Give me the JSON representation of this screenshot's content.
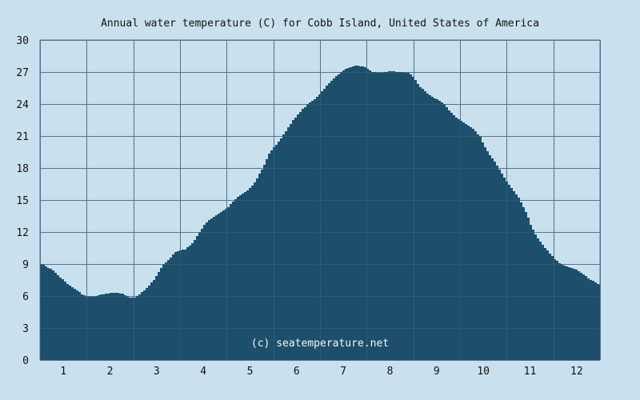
{
  "chart_data": {
    "type": "area",
    "title": "Annual water temperature (C) for Cobb Island, United States of America",
    "xlabel": "",
    "ylabel": "",
    "ylim": [
      0,
      30
    ],
    "xlim": [
      0.5,
      12.5
    ],
    "y_ticks": [
      "0",
      "3",
      "6",
      "9",
      "12",
      "15",
      "18",
      "21",
      "24",
      "27",
      "30"
    ],
    "x_ticks": [
      "1",
      "2",
      "3",
      "4",
      "5",
      "6",
      "7",
      "8",
      "9",
      "10",
      "11",
      "12"
    ],
    "grid": true,
    "fill_color": "#1d4f6b",
    "background_color": "#c9e1ee",
    "grid_color": "#4f7690",
    "watermark": "(c) seatemperature.net",
    "series": [
      {
        "x": [
          0.5,
          0.6,
          0.75,
          0.9,
          1.0,
          1.1,
          1.25,
          1.4,
          1.5,
          1.6,
          1.75,
          1.9,
          2.0,
          2.15,
          2.25,
          2.35,
          2.5,
          2.6,
          2.75,
          2.9,
          3.0,
          3.1,
          3.25,
          3.4,
          3.5,
          3.6,
          3.75,
          3.9,
          4.0,
          4.1,
          4.25,
          4.4,
          4.5,
          4.6,
          4.75,
          4.9,
          5.0,
          5.1,
          5.25,
          5.4,
          5.5,
          5.6,
          5.75,
          5.9,
          6.0,
          6.1,
          6.25,
          6.4,
          6.5,
          6.6,
          6.75,
          6.9,
          7.0,
          7.1,
          7.25,
          7.4,
          7.5,
          7.6,
          7.75,
          7.9,
          8.0,
          8.1,
          8.25,
          8.4,
          8.5,
          8.6,
          8.75,
          8.9,
          9.0,
          9.1,
          9.25,
          9.4,
          9.5,
          9.6,
          9.75,
          9.9,
          10.0,
          10.1,
          10.25,
          10.4,
          10.5,
          10.6,
          10.75,
          10.9,
          11.0,
          11.1,
          11.25,
          11.4,
          11.5,
          11.6,
          11.75,
          11.9,
          12.0,
          12.1,
          12.25,
          12.4,
          12.5
        ],
        "values": [
          9.0,
          8.8,
          8.4,
          7.8,
          7.4,
          7.0,
          6.6,
          6.1,
          5.9,
          5.9,
          6.1,
          6.2,
          6.3,
          6.3,
          6.2,
          5.9,
          5.8,
          6.1,
          6.7,
          7.4,
          8.1,
          8.8,
          9.5,
          10.2,
          10.3,
          10.4,
          11.0,
          12.0,
          12.7,
          13.1,
          13.6,
          14.0,
          14.3,
          14.8,
          15.4,
          15.8,
          16.2,
          16.8,
          18.0,
          19.5,
          20.0,
          20.5,
          21.5,
          22.5,
          23.0,
          23.5,
          24.1,
          24.6,
          25.1,
          25.6,
          26.3,
          26.9,
          27.2,
          27.4,
          27.6,
          27.5,
          27.3,
          27.0,
          26.9,
          27.0,
          27.1,
          27.0,
          27.0,
          26.9,
          26.4,
          25.7,
          25.1,
          24.6,
          24.4,
          24.1,
          23.4,
          22.7,
          22.4,
          22.1,
          21.7,
          21.0,
          20.1,
          19.3,
          18.4,
          17.3,
          16.6,
          16.0,
          15.1,
          13.8,
          12.6,
          11.7,
          10.8,
          10.0,
          9.5,
          9.1,
          8.8,
          8.6,
          8.4,
          8.1,
          7.6,
          7.2,
          7.0
        ]
      }
    ]
  }
}
